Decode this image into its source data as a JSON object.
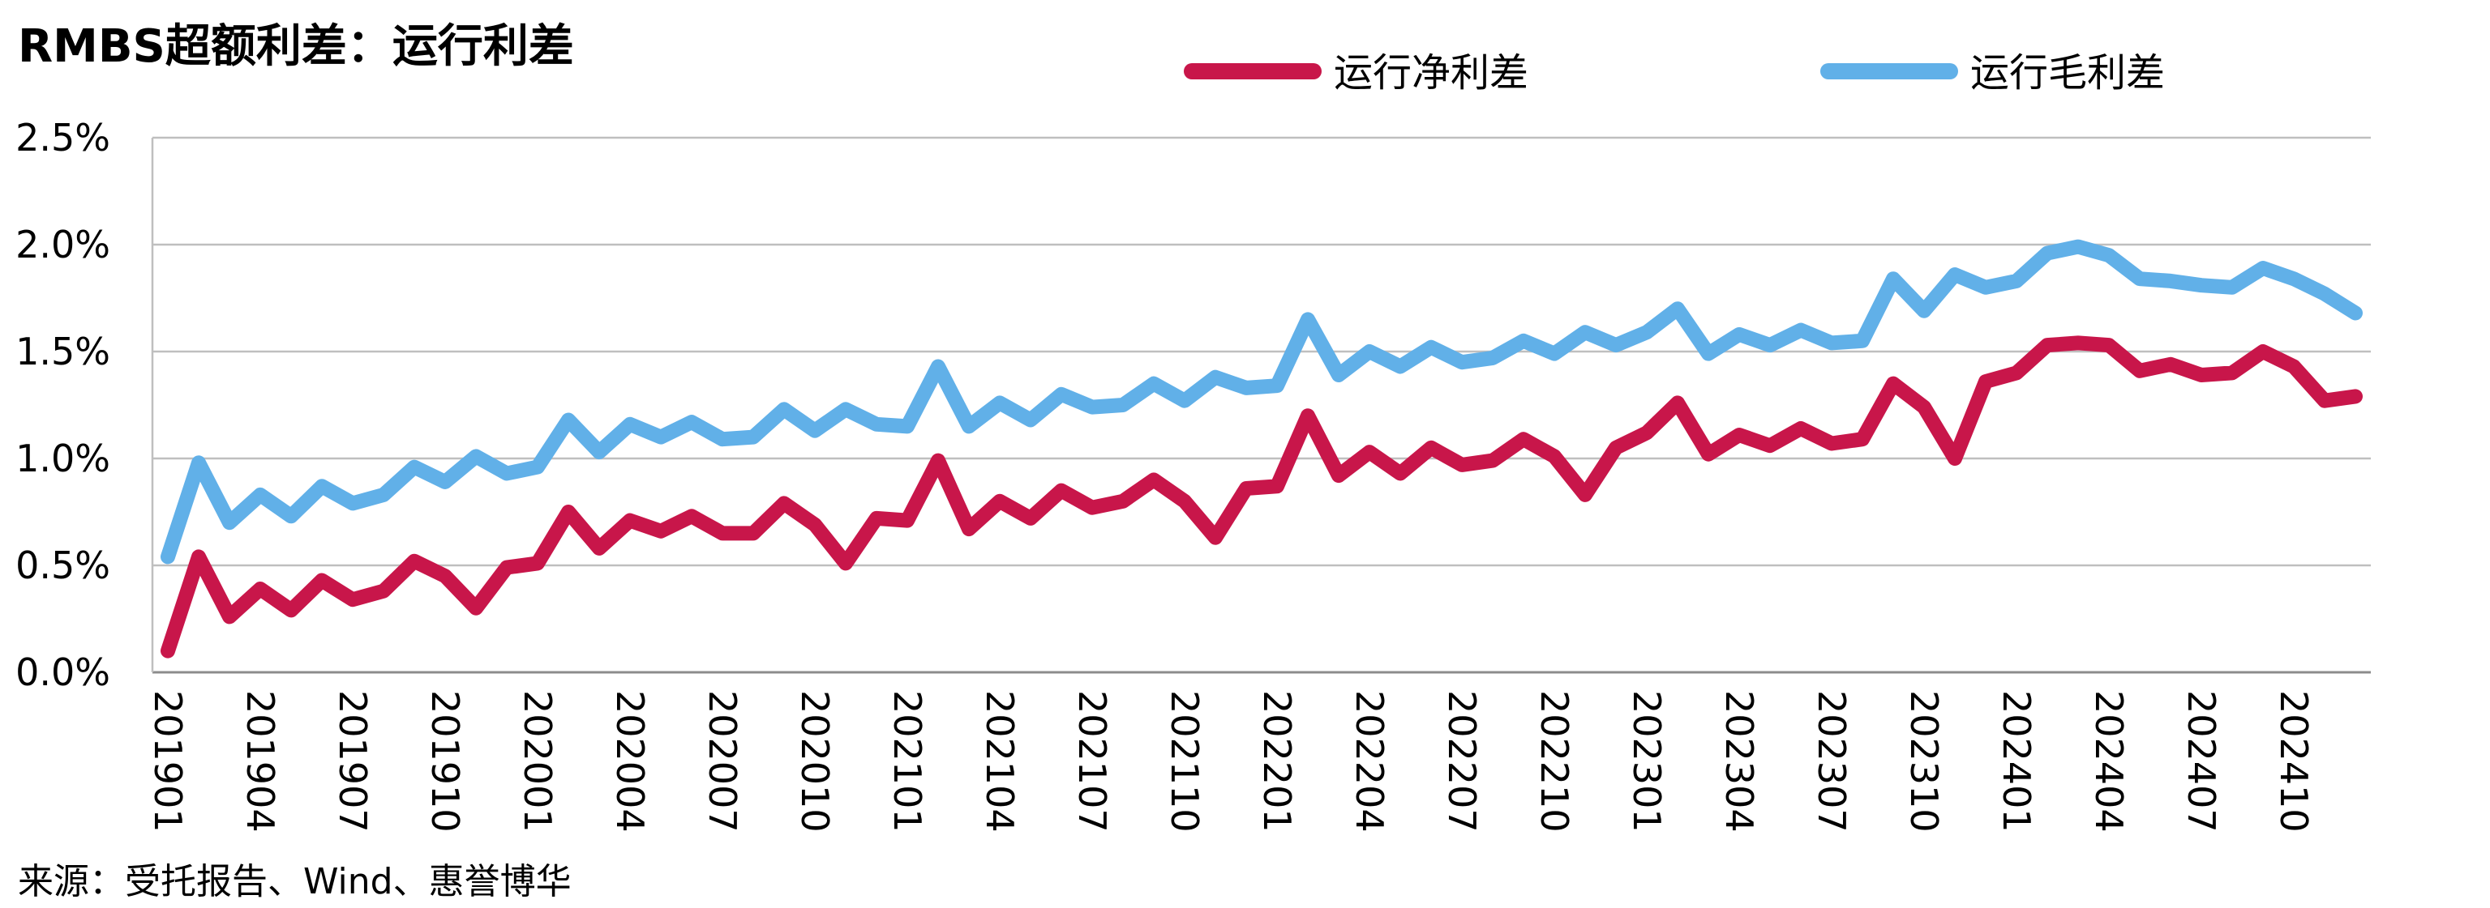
{
  "chart_data": {
    "type": "line",
    "title": "RMBS超额利差：运行利差",
    "source": "来源：受托报告、Wind、惠誉博华",
    "xlabel": "",
    "ylabel": "",
    "ylim": [
      0,
      2.5
    ],
    "y_ticks": [
      "0.0%",
      "0.5%",
      "1.0%",
      "1.5%",
      "2.0%",
      "2.5%"
    ],
    "grid": true,
    "legend": "top",
    "x": [
      "201901",
      "201902",
      "201903",
      "201904",
      "201905",
      "201906",
      "201907",
      "201908",
      "201909",
      "201910",
      "201911",
      "201912",
      "202001",
      "202002",
      "202003",
      "202004",
      "202005",
      "202006",
      "202007",
      "202008",
      "202009",
      "202010",
      "202011",
      "202012",
      "202101",
      "202102",
      "202103",
      "202104",
      "202105",
      "202106",
      "202107",
      "202108",
      "202109",
      "202110",
      "202111",
      "202112",
      "202201",
      "202202",
      "202203",
      "202204",
      "202205",
      "202206",
      "202207",
      "202208",
      "202209",
      "202210",
      "202211",
      "202212",
      "202301",
      "202302",
      "202303",
      "202304",
      "202305",
      "202306",
      "202307",
      "202308",
      "202309",
      "202310",
      "202311",
      "202312",
      "202401",
      "202402",
      "202403",
      "202404",
      "202405",
      "202406",
      "202407",
      "202408",
      "202409",
      "202410",
      "202411",
      "202412"
    ],
    "x_tick_labels": [
      "201901",
      "201904",
      "201907",
      "201910",
      "202001",
      "202004",
      "202007",
      "202010",
      "202101",
      "202104",
      "202107",
      "202110",
      "202201",
      "202204",
      "202207",
      "202210",
      "202301",
      "202304",
      "202307",
      "202310",
      "202401",
      "202404",
      "202407",
      "202410"
    ],
    "series": [
      {
        "name": "运行净利差",
        "color": "#C8164A",
        "values": [
          0.1,
          0.54,
          0.26,
          0.39,
          0.29,
          0.43,
          0.34,
          0.38,
          0.52,
          0.45,
          0.3,
          0.49,
          0.51,
          0.75,
          0.58,
          0.71,
          0.66,
          0.73,
          0.65,
          0.65,
          0.79,
          0.69,
          0.51,
          0.72,
          0.71,
          0.99,
          0.67,
          0.8,
          0.72,
          0.85,
          0.77,
          0.8,
          0.9,
          0.8,
          0.63,
          0.86,
          0.87,
          1.2,
          0.92,
          1.03,
          0.93,
          1.05,
          0.97,
          0.99,
          1.09,
          1.01,
          0.83,
          1.05,
          1.12,
          1.26,
          1.02,
          1.11,
          1.06,
          1.14,
          1.07,
          1.09,
          1.35,
          1.24,
          1.0,
          1.36,
          1.4,
          1.53,
          1.54,
          1.53,
          1.41,
          1.44,
          1.39,
          1.4,
          1.5,
          1.43,
          1.27,
          1.29
        ]
      },
      {
        "name": "运行毛利差",
        "color": "#61B0E8",
        "values": [
          0.54,
          0.98,
          0.7,
          0.83,
          0.73,
          0.87,
          0.79,
          0.83,
          0.96,
          0.89,
          1.01,
          0.93,
          0.96,
          1.18,
          1.03,
          1.16,
          1.1,
          1.17,
          1.09,
          1.1,
          1.23,
          1.13,
          1.23,
          1.16,
          1.15,
          1.43,
          1.15,
          1.26,
          1.18,
          1.3,
          1.24,
          1.25,
          1.35,
          1.27,
          1.38,
          1.33,
          1.34,
          1.65,
          1.39,
          1.5,
          1.43,
          1.52,
          1.45,
          1.47,
          1.55,
          1.49,
          1.59,
          1.53,
          1.59,
          1.7,
          1.49,
          1.58,
          1.53,
          1.6,
          1.54,
          1.55,
          1.84,
          1.69,
          1.86,
          1.8,
          1.83,
          1.96,
          1.99,
          1.95,
          1.84,
          1.83,
          1.81,
          1.8,
          1.89,
          1.84,
          1.77,
          1.68
        ]
      }
    ]
  }
}
